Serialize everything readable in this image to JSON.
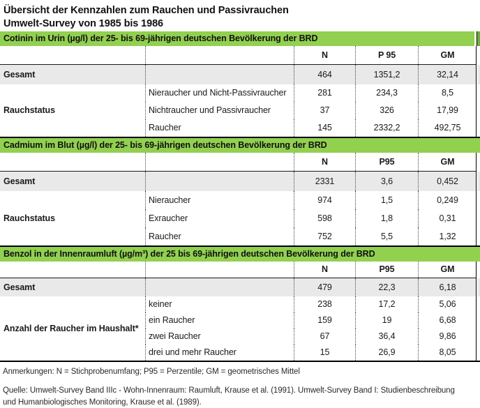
{
  "title": {
    "line1": "Übersicht der Kennzahlen zum Rauchen und Passivrauchen",
    "line2": "Umwelt-Survey von 1985 bis 1986"
  },
  "colors": {
    "section_header_green": "#92D050",
    "continuation_green": "#6FAE3E",
    "gesamt_row_gray": "#E9E9E9",
    "border_black": "#000000"
  },
  "sections": [
    {
      "header": "Cotinin im Urin (µg/l) der 25- bis 69-jährigen deutschen Bevölkerung der BRD",
      "columns": [
        "N",
        "P 95",
        "GM"
      ],
      "gesamt": {
        "label": "Gesamt",
        "n": "464",
        "p95": "1351,2",
        "gm": "32,14"
      },
      "group": {
        "label": "Rauchstatus",
        "rows": [
          {
            "label": "Nieraucher und Nicht-Passivraucher",
            "n": "281",
            "p95": "234,3",
            "gm": "8,5"
          },
          {
            "label": "Nichtraucher und Passivraucher",
            "n": "37",
            "p95": "326",
            "gm": "17,99"
          },
          {
            "label": "Raucher",
            "n": "145",
            "p95": "2332,2",
            "gm": "492,75"
          }
        ]
      }
    },
    {
      "header": "Cadmium im Blut (µg/l) der 25- bis 69-jährigen deutschen Bevölkerung der BRD",
      "columns": [
        "N",
        "P95",
        "GM"
      ],
      "gesamt": {
        "label": "Gesamt",
        "n": "2331",
        "p95": "3,6",
        "gm": "0,452"
      },
      "group": {
        "label": "Rauchstatus",
        "rows": [
          {
            "label": "Nieraucher",
            "n": "974",
            "p95": "1,5",
            "gm": "0,249"
          },
          {
            "label": "Exraucher",
            "n": "598",
            "p95": "1,8",
            "gm": "0,31"
          },
          {
            "label": "Raucher",
            "n": "752",
            "p95": "5,5",
            "gm": "1,32"
          }
        ]
      }
    },
    {
      "header": "Benzol in der Innenraumluft (µg/m³) der 25 bis 69-jährigen deutschen Bevölkerung der BRD",
      "columns": [
        "N",
        "P95",
        "GM"
      ],
      "gesamt": {
        "label": "Gesamt",
        "n": "479",
        "p95": "22,3",
        "gm": "6,18"
      },
      "group": {
        "label": "Anzahl der Raucher im Haushalt*",
        "rows": [
          {
            "label": "keiner",
            "n": "238",
            "p95": "17,2",
            "gm": "5,06"
          },
          {
            "label": "ein Raucher",
            "n": "159",
            "p95": "19",
            "gm": "6,68"
          },
          {
            "label": "zwei Raucher",
            "n": "67",
            "p95": "36,4",
            "gm": "9,86"
          },
          {
            "label": "drei und mehr Raucher",
            "n": "15",
            "p95": "26,9",
            "gm": "8,05"
          }
        ]
      }
    }
  ],
  "footer": {
    "anmerkungen": "Anmerkungen: N = Stichprobenumfang; P95 = Perzentile; GM = geometrisches Mittel",
    "quelle": "Quelle: Umwelt-Survey Band IIIc - Wohn-Innenraum: Raumluft, Krause et al. (1991). Umwelt-Survey Band I: Studienbeschreibung und Humanbiologisches Monitoring, Krause et al. (1989)."
  }
}
